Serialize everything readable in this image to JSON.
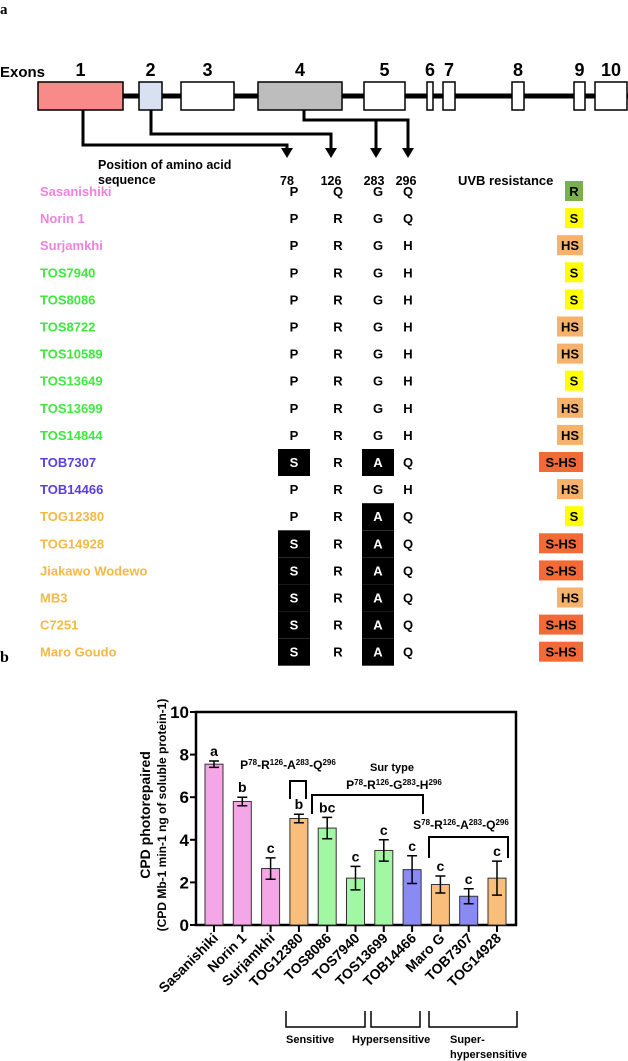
{
  "panel_a": {
    "label": "a",
    "exons_label": "Exons",
    "exon_numbers": [
      "1",
      "2",
      "3",
      "4",
      "5",
      "6",
      "7",
      "8",
      "9",
      "10"
    ],
    "exon_colors": {
      "1": "#f88a8a",
      "2": "#d7e1f2",
      "4": "#bdbdbd",
      "default": "#ffffff"
    },
    "position_label_1": "Position of amino acid",
    "position_label_2": "sequence",
    "positions": [
      "78",
      "126",
      "283",
      "296"
    ],
    "uvb_header": "UVB resistance",
    "name_colors": {
      "pink": "#ee82dc",
      "green": "#3ee83e",
      "blue": "#5a3ee0",
      "orange": "#f2b944"
    },
    "badge_colors": {
      "R": "#79b04a",
      "S": "#ffff00",
      "HS": "#f6b26b",
      "S-HS": "#f26a35"
    },
    "rows": [
      {
        "name": "Sasanishiki",
        "group": "pink",
        "aa": [
          "P",
          "Q",
          "G",
          "Q"
        ],
        "uvb": "R"
      },
      {
        "name": "Norin 1",
        "group": "pink",
        "aa": [
          "P",
          "R",
          "G",
          "Q"
        ],
        "uvb": "S"
      },
      {
        "name": "Surjamkhi",
        "group": "pink",
        "aa": [
          "P",
          "R",
          "G",
          "H"
        ],
        "uvb": "HS"
      },
      {
        "name": "TOS7940",
        "group": "green",
        "aa": [
          "P",
          "R",
          "G",
          "H"
        ],
        "uvb": "S"
      },
      {
        "name": "TOS8086",
        "group": "green",
        "aa": [
          "P",
          "R",
          "G",
          "H"
        ],
        "uvb": "S"
      },
      {
        "name": "TOS8722",
        "group": "green",
        "aa": [
          "P",
          "R",
          "G",
          "H"
        ],
        "uvb": "HS"
      },
      {
        "name": "TOS10589",
        "group": "green",
        "aa": [
          "P",
          "R",
          "G",
          "H"
        ],
        "uvb": "HS"
      },
      {
        "name": "TOS13649",
        "group": "green",
        "aa": [
          "P",
          "R",
          "G",
          "H"
        ],
        "uvb": "S"
      },
      {
        "name": "TOS13699",
        "group": "green",
        "aa": [
          "P",
          "R",
          "G",
          "H"
        ],
        "uvb": "HS"
      },
      {
        "name": "TOS14844",
        "group": "green",
        "aa": [
          "P",
          "R",
          "G",
          "H"
        ],
        "uvb": "HS"
      },
      {
        "name": "TOB7307",
        "group": "blue",
        "aa": [
          "S",
          "R",
          "A",
          "Q"
        ],
        "uvb": "S-HS"
      },
      {
        "name": "TOB14466",
        "group": "blue",
        "aa": [
          "P",
          "R",
          "G",
          "H"
        ],
        "uvb": "HS"
      },
      {
        "name": "TOG12380",
        "group": "orange",
        "aa": [
          "P",
          "R",
          "A",
          "Q"
        ],
        "uvb": "S"
      },
      {
        "name": "TOG14928",
        "group": "orange",
        "aa": [
          "S",
          "R",
          "A",
          "Q"
        ],
        "uvb": "S-HS"
      },
      {
        "name": "Jiakawo Wodewo",
        "group": "orange",
        "aa": [
          "S",
          "R",
          "A",
          "Q"
        ],
        "uvb": "S-HS"
      },
      {
        "name": "MB3",
        "group": "orange",
        "aa": [
          "S",
          "R",
          "A",
          "Q"
        ],
        "uvb": "HS"
      },
      {
        "name": "C7251",
        "group": "orange",
        "aa": [
          "S",
          "R",
          "A",
          "Q"
        ],
        "uvb": "S-HS"
      },
      {
        "name": "Maro Goudo",
        "group": "orange",
        "aa": [
          "S",
          "R",
          "A",
          "Q"
        ],
        "uvb": "S-HS"
      }
    ],
    "highlight_residues": [
      "S",
      "A"
    ]
  },
  "panel_b": {
    "label": "b",
    "group_labels": {
      "sensitive": "Sensitive",
      "hypersensitive": "Hypersensitive",
      "super_1": "Super-",
      "super_2": "hypersensitive"
    },
    "annotations": {
      "pragq": [
        [
          "P",
          "78"
        ],
        [
          "-R",
          "126"
        ],
        [
          "-A",
          "283"
        ],
        [
          "-Q",
          "296"
        ]
      ],
      "sur_type": "Sur type",
      "prggh": [
        [
          "P",
          "78"
        ],
        [
          "-R",
          "126"
        ],
        [
          "-G",
          "283"
        ],
        [
          "-H",
          "296"
        ]
      ],
      "sragq": [
        [
          "S",
          "78"
        ],
        [
          "-R",
          "126"
        ],
        [
          "-A",
          "283"
        ],
        [
          "-Q",
          "296"
        ]
      ]
    }
  },
  "chart_data": {
    "type": "bar",
    "title": "",
    "xlabel": "",
    "ylabel": "CPD photorepaired",
    "ylabel2": "(CPD Mb-1 min-1 ng of soluble protein-1)",
    "ylim": [
      0,
      10
    ],
    "yticks": [
      "0",
      "2",
      "4",
      "6",
      "8",
      "10"
    ],
    "categories": [
      "Sasanishiki",
      "Norin 1",
      "Surjamkhi",
      "TOG12380",
      "TOS8086",
      "TOS7940",
      "TOS13699",
      "TOB14466",
      "Maro G",
      "TOB7307",
      "TOG14928"
    ],
    "values": [
      7.55,
      5.8,
      2.65,
      5.0,
      4.55,
      2.2,
      3.5,
      2.6,
      1.9,
      1.35,
      2.2
    ],
    "errors": [
      0.15,
      0.2,
      0.5,
      0.2,
      0.5,
      0.55,
      0.5,
      0.65,
      0.4,
      0.35,
      0.8
    ],
    "significance": [
      "a",
      "b",
      "c",
      "b",
      "bc",
      "c",
      "c",
      "c",
      "c",
      "c",
      "c"
    ],
    "colors": [
      "#f4a6e6",
      "#f4a6e6",
      "#f4a6e6",
      "#f9be7c",
      "#a2f7a2",
      "#a2f7a2",
      "#a2f7a2",
      "#8a8af5",
      "#f9be7c",
      "#8a8af5",
      "#f9be7c"
    ]
  }
}
